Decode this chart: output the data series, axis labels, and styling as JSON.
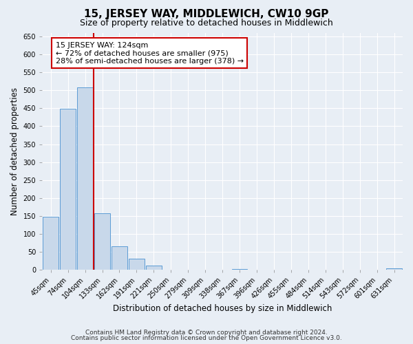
{
  "title": "15, JERSEY WAY, MIDDLEWICH, CW10 9GP",
  "subtitle": "Size of property relative to detached houses in Middlewich",
  "xlabel": "Distribution of detached houses by size in Middlewich",
  "ylabel": "Number of detached properties",
  "bar_labels": [
    "45sqm",
    "74sqm",
    "104sqm",
    "133sqm",
    "162sqm",
    "191sqm",
    "221sqm",
    "250sqm",
    "279sqm",
    "309sqm",
    "338sqm",
    "367sqm",
    "396sqm",
    "426sqm",
    "455sqm",
    "484sqm",
    "514sqm",
    "543sqm",
    "572sqm",
    "601sqm",
    "631sqm"
  ],
  "bar_values": [
    148,
    449,
    507,
    158,
    65,
    32,
    12,
    0,
    0,
    0,
    0,
    3,
    0,
    0,
    0,
    0,
    0,
    0,
    0,
    0,
    4
  ],
  "bar_color": "#c8d8ea",
  "bar_edge_color": "#5b9bd5",
  "vline_position": 2.5,
  "vline_color": "#cc0000",
  "ylim_min": 0,
  "ylim_max": 660,
  "yticks": [
    0,
    50,
    100,
    150,
    200,
    250,
    300,
    350,
    400,
    450,
    500,
    550,
    600,
    650
  ],
  "annotation_line1": "15 JERSEY WAY: 124sqm",
  "annotation_line2": "← 72% of detached houses are smaller (975)",
  "annotation_line3": "28% of semi-detached houses are larger (378) →",
  "annotation_box_edgecolor": "#cc0000",
  "annotation_box_facecolor": "#ffffff",
  "footer_line1": "Contains HM Land Registry data © Crown copyright and database right 2024.",
  "footer_line2": "Contains public sector information licensed under the Open Government Licence v3.0.",
  "background_color": "#e8eef5",
  "grid_color": "#ffffff",
  "title_fontsize": 11,
  "subtitle_fontsize": 9,
  "axis_label_fontsize": 8.5,
  "tick_fontsize": 7,
  "footer_fontsize": 6.5,
  "annotation_fontsize": 8
}
